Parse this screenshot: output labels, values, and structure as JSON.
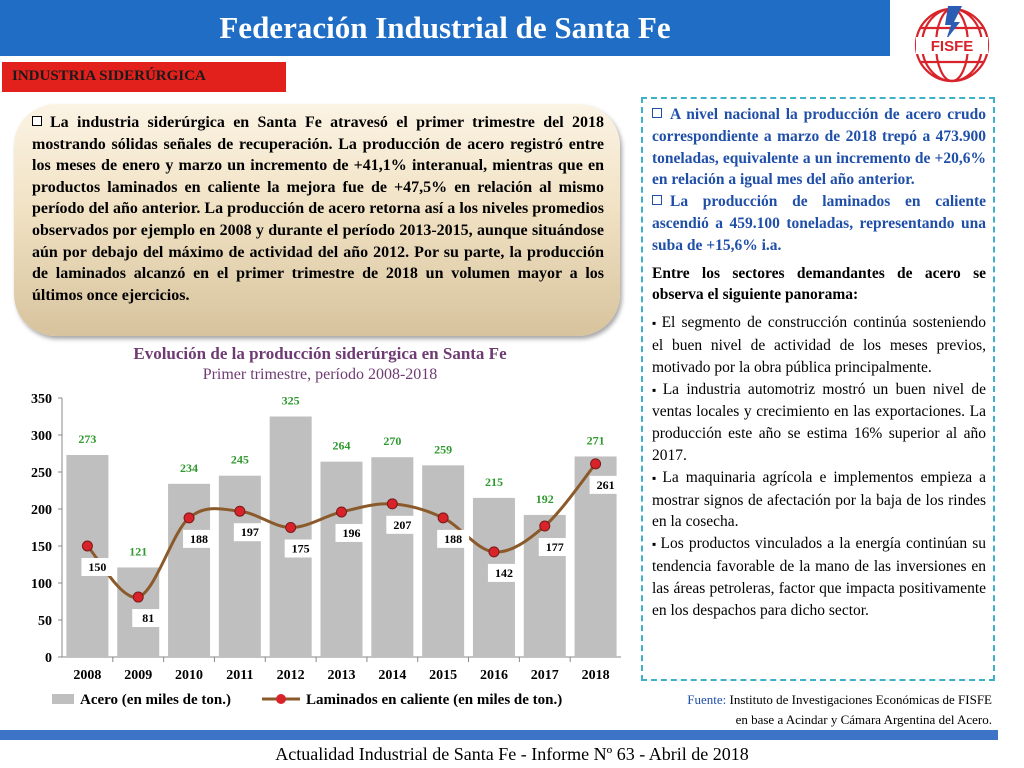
{
  "header": {
    "title": "Federación Industrial de Santa Fe"
  },
  "logo": {
    "text": "FISFE"
  },
  "section": {
    "label": "INDUSTRIA SIDERÚRGICA"
  },
  "summary": {
    "text": "La industria siderúrgica en Santa Fe atravesó el primer trimestre del 2018 mostrando sólidas señales de recuperación. La producción de acero registró entre los meses de enero y marzo un incremento de +41,1% interanual, mientras que en productos laminados en caliente la mejora fue de +47,5% en relación al mismo período del año anterior. La producción de acero retorna así a los niveles promedios observados por ejemplo en 2008 y durante el período 2013-2015, aunque situándose aún por debajo del máximo de actividad del año 2012. Por su parte, la producción de laminados alcanzó en el primer trimestre de 2018 un volumen mayor a los últimos once ejercicios."
  },
  "right_panel": {
    "national_1": "A nivel nacional la producción de acero crudo correspondiente a marzo de 2018 trepó a 473.900 toneladas, equivalente a un incremento de +20,6% en relación a igual mes del año anterior.",
    "national_2": "La producción de laminados en caliente ascendió a 459.100 toneladas, representando una suba de +15,6% i.a.",
    "intro": "Entre los sectores demandantes de acero se observa el siguiente panorama:",
    "sectors": [
      "El segmento de construcción continúa sosteniendo el buen nivel de actividad de los meses previos, motivado por la obra pública principalmente.",
      "La industria automotriz mostró un buen nivel de ventas locales y crecimiento en las exportaciones. La producción este año se estima 16% superior al año 2017.",
      "La maquinaria agrícola e implementos empieza a mostrar signos de afectación por la baja de los rindes en la cosecha.",
      "Los productos vinculados a la energía continúan su tendencia favorable de la mano de las inversiones en las áreas petroleras, factor que impacta positivamente en los despachos para dicho sector."
    ]
  },
  "source": {
    "label": "Fuente:",
    "line1": "Instituto de Investigaciones Económicas de FISFE",
    "line2": "en base a Acindar y Cámara Argentina del Acero."
  },
  "footer": {
    "text": "Actualidad Industrial de Santa Fe - Informe Nº 63 - Abril de 2018"
  },
  "chart_data": {
    "type": "bar",
    "title": "Evolución de la producción siderúrgica en Santa Fe",
    "subtitle": "Primer trimestre, período 2008-2018",
    "categories": [
      "2008",
      "2009",
      "2010",
      "2011",
      "2012",
      "2013",
      "2014",
      "2015",
      "2016",
      "2017",
      "2018"
    ],
    "series": [
      {
        "name": "Acero (en miles de ton.)",
        "type": "bar",
        "color": "#bfbfbf",
        "label_color": "#2e9a2e",
        "values": [
          273,
          121,
          234,
          245,
          325,
          264,
          270,
          259,
          215,
          192,
          271
        ]
      },
      {
        "name": "Laminados en caliente (en miles de ton.)",
        "type": "line",
        "color": "#8b5a2b",
        "marker_color": "#d9232a",
        "values": [
          150,
          81,
          188,
          197,
          175,
          196,
          207,
          188,
          142,
          177,
          261
        ]
      }
    ],
    "ylim": [
      0,
      350
    ],
    "yticks": [
      0,
      50,
      100,
      150,
      200,
      250,
      300,
      350
    ],
    "grid": false,
    "legend": "bottom"
  }
}
